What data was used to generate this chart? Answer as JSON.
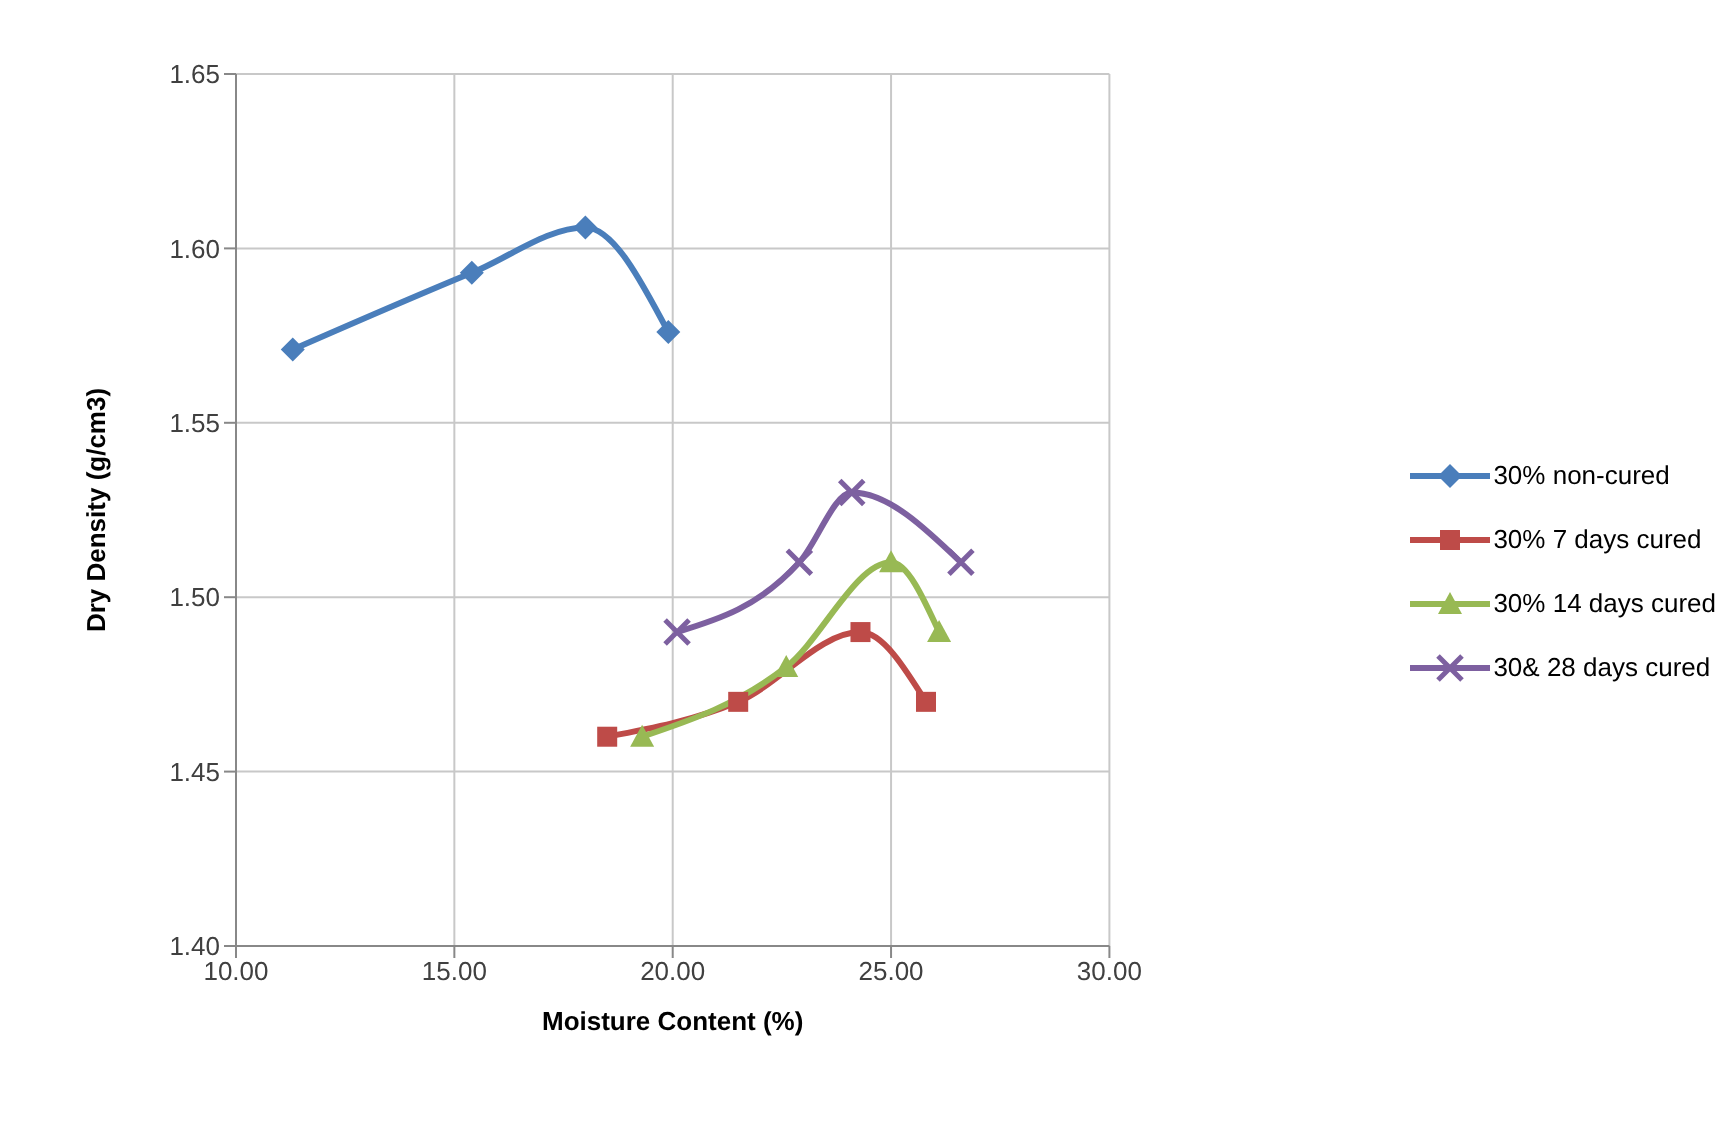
{
  "chart_data": {
    "type": "line",
    "xlabel": "Moisture Content (%)",
    "ylabel": "Dry Density (g/cm3)",
    "xlim": [
      10,
      30
    ],
    "ylim": [
      1.4,
      1.65
    ],
    "xticks": [
      {
        "value": 10,
        "label": "10.00"
      },
      {
        "value": 15,
        "label": "15.00"
      },
      {
        "value": 20,
        "label": "20.00"
      },
      {
        "value": 25,
        "label": "25.00"
      },
      {
        "value": 30,
        "label": "30.00"
      }
    ],
    "yticks": [
      {
        "value": 1.4,
        "label": "1.40"
      },
      {
        "value": 1.45,
        "label": "1.45"
      },
      {
        "value": 1.5,
        "label": "1.50"
      },
      {
        "value": 1.55,
        "label": "1.55"
      },
      {
        "value": 1.6,
        "label": "1.60"
      },
      {
        "value": 1.65,
        "label": "1.65"
      }
    ],
    "grid": true,
    "legend": "right",
    "series": [
      {
        "name": "30% non-cured",
        "color": "#4a7ebb",
        "marker": "diamond",
        "x": [
          11.3,
          15.4,
          18.0,
          19.9
        ],
        "values": [
          1.571,
          1.593,
          1.606,
          1.576
        ]
      },
      {
        "name": "30% 7 days cured",
        "color": "#be4b48",
        "marker": "square",
        "x": [
          18.5,
          21.5,
          24.3,
          25.8
        ],
        "values": [
          1.46,
          1.47,
          1.49,
          1.47
        ]
      },
      {
        "name": "30% 14 days cured",
        "color": "#98b954",
        "marker": "triangle",
        "x": [
          19.3,
          22.6,
          25.0,
          26.1
        ],
        "values": [
          1.46,
          1.48,
          1.51,
          1.49
        ]
      },
      {
        "name": "30& 28 days cured",
        "color": "#7d60a0",
        "marker": "cross",
        "x": [
          20.1,
          22.9,
          24.1,
          26.6
        ],
        "values": [
          1.49,
          1.51,
          1.53,
          1.51
        ]
      }
    ]
  }
}
